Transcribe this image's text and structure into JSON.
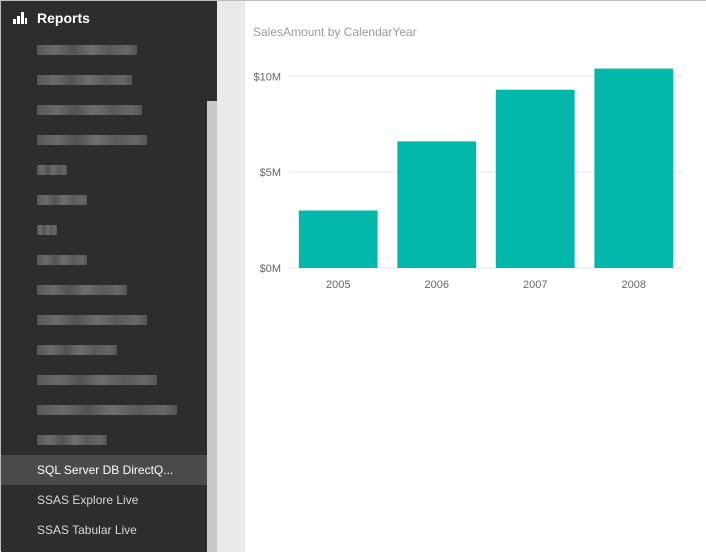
{
  "nav": {
    "header_label": "Reports",
    "header_icon": "bar-chart-icon",
    "blurred_item_count_note": "",
    "items": [
      {
        "label": "",
        "blurred": true
      },
      {
        "label": "",
        "blurred": true
      },
      {
        "label": "",
        "blurred": true
      },
      {
        "label": "",
        "blurred": true
      },
      {
        "label": "",
        "blurred": true
      },
      {
        "label": "",
        "blurred": true
      },
      {
        "label": "",
        "blurred": true
      },
      {
        "label": "",
        "blurred": true
      },
      {
        "label": "",
        "blurred": true
      },
      {
        "label": "",
        "blurred": true
      },
      {
        "label": "",
        "blurred": true
      },
      {
        "label": "",
        "blurred": true
      },
      {
        "label": "",
        "blurred": true
      },
      {
        "label": "",
        "blurred": true
      },
      {
        "label": "SQL Server DB DirectQ...",
        "blurred": false,
        "selected": true
      },
      {
        "label": "SSAS Explore Live",
        "blurred": false
      },
      {
        "label": "SSAS Tabular Live",
        "blurred": false
      }
    ]
  },
  "colors": {
    "sidebar_bg": "#2d2d2d",
    "bar_color": "#01b8aa",
    "canvas_bg": "#eaeaea"
  },
  "chart_data": {
    "type": "bar",
    "title": "SalesAmount by CalendarYear",
    "xlabel": "",
    "ylabel": "",
    "categories": [
      "2005",
      "2006",
      "2007",
      "2008"
    ],
    "values": [
      3.0,
      6.6,
      9.3,
      10.4
    ],
    "value_unit": "M",
    "ylim": [
      0,
      10.9
    ],
    "yticks": [
      0,
      5,
      10
    ],
    "ytick_labels": [
      "$0M",
      "$5M",
      "$10M"
    ],
    "grid": true,
    "legend": "none"
  }
}
